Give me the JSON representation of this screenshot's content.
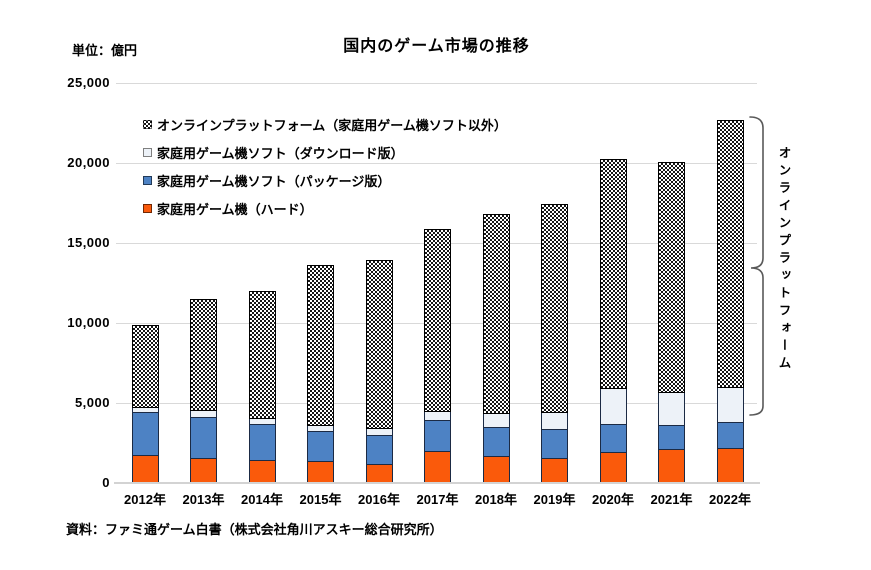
{
  "title": "国内のゲーム市場の推移",
  "unit_label": "単位：億円",
  "source": "資料：ファミ通ゲーム白書（株式会社角川アスキー総合研究所）",
  "right_annotation": "オンラインプラットフォーム",
  "colors": {
    "hardware_orange": "#fa5a0b",
    "package_blue": "#4d82c4",
    "download_white": "#edf2f8",
    "online_pattern_fg": "#161616",
    "online_pattern_bg": "#ffffff",
    "gridline": "#d9d9d9",
    "axis_line": "#d3d3d3",
    "segment_border": "#1b2a44",
    "brace": "#595959"
  },
  "chart_data": {
    "type": "bar",
    "stacked": true,
    "title": "国内のゲーム市場の推移",
    "unit": "億円",
    "xlabel": "",
    "ylabel": "単位：億円",
    "ylim": [
      0,
      25000
    ],
    "y_tick_step": 5000,
    "y_tick_labels": [
      "0",
      "5,000",
      "10,000",
      "15,000",
      "20,000",
      "25,000"
    ],
    "grid": true,
    "legend_position": "inside-top-left",
    "categories": [
      "2012年",
      "2013年",
      "2014年",
      "2015年",
      "2016年",
      "2017年",
      "2018年",
      "2019年",
      "2020年",
      "2021年",
      "2022年"
    ],
    "series": [
      {
        "name": "家庭用ゲーム機（ハード）",
        "color": "#fa5a0b",
        "pattern": "solid",
        "values": [
          1700,
          1500,
          1400,
          1300,
          1150,
          1950,
          1600,
          1500,
          1850,
          2050,
          2100
        ]
      },
      {
        "name": "家庭用ゲーム機ソフト（パッケージ版）",
        "color": "#4d82c4",
        "pattern": "solid",
        "values": [
          2700,
          2550,
          2250,
          1900,
          1800,
          1950,
          1850,
          1800,
          1750,
          1500,
          1650
        ]
      },
      {
        "name": "家庭用ゲーム機ソフト（ダウンロード版）",
        "color": "#edf2f8",
        "pattern": "solid",
        "values": [
          300,
          450,
          350,
          350,
          400,
          550,
          850,
          1075,
          2300,
          2100,
          2200
        ]
      },
      {
        "name": "オンラインプラットフォーム（家庭用ゲーム機ソフト以外）",
        "color": "#ffffff",
        "pattern": "checker",
        "values": [
          5150,
          7000,
          8000,
          10100,
          10600,
          11400,
          12500,
          13075,
          14350,
          14400,
          16750
        ]
      }
    ],
    "totals": [
      9850,
      11500,
      12000,
      13650,
      13950,
      15850,
      16800,
      17450,
      20250,
      20050,
      22700
    ],
    "legend_order": [
      3,
      2,
      1,
      0
    ],
    "annotation_right": "オンラインプラットフォーム"
  }
}
